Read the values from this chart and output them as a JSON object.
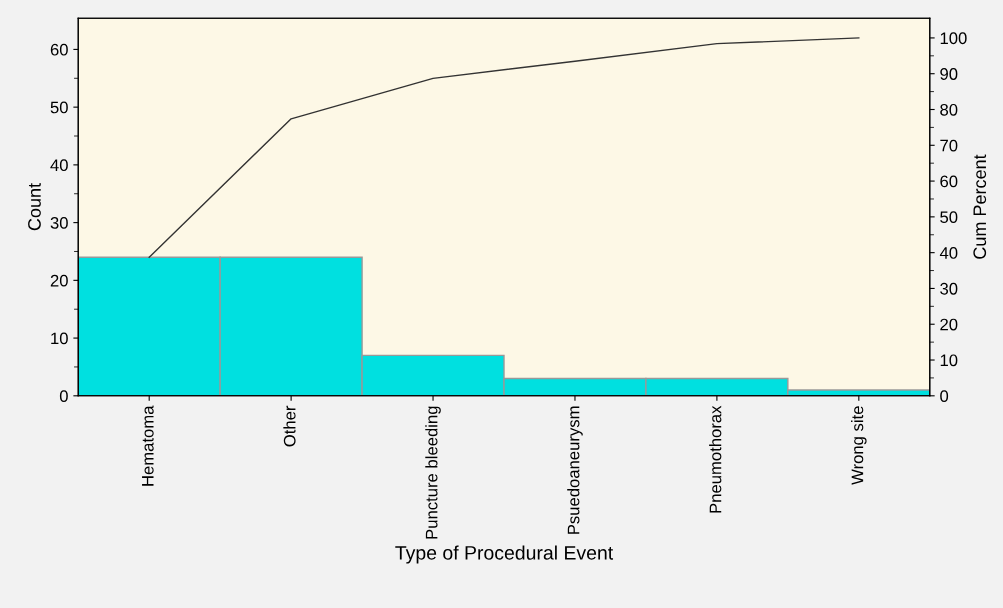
{
  "chart_data": {
    "type": "bar",
    "xlabel": "Type of Procedural Event",
    "ylabel": "Count",
    "y2label": "Cum Percent",
    "categories": [
      "Hematoma",
      "Other",
      "Puncture bleeding",
      "Psuedoaneurysm",
      "Pneumothorax",
      "Wrong site"
    ],
    "series": [
      {
        "color": "#00e0e0",
        "values": [
          24,
          24,
          7,
          3,
          3,
          1
        ]
      },
      {
        "type": "line",
        "axis": "y2",
        "color": "#333333",
        "values": [
          38.7,
          77.4,
          88.7,
          93.5,
          98.4,
          100
        ]
      }
    ],
    "ylim": [
      0,
      65.4
    ],
    "yticks": [
      0,
      10,
      20,
      30,
      40,
      50,
      60
    ],
    "y2lim": [
      0,
      105.5
    ],
    "y2ticks": [
      0,
      10,
      20,
      30,
      40,
      50,
      60,
      70,
      80,
      90,
      100
    ],
    "grid": false,
    "legend": false
  }
}
